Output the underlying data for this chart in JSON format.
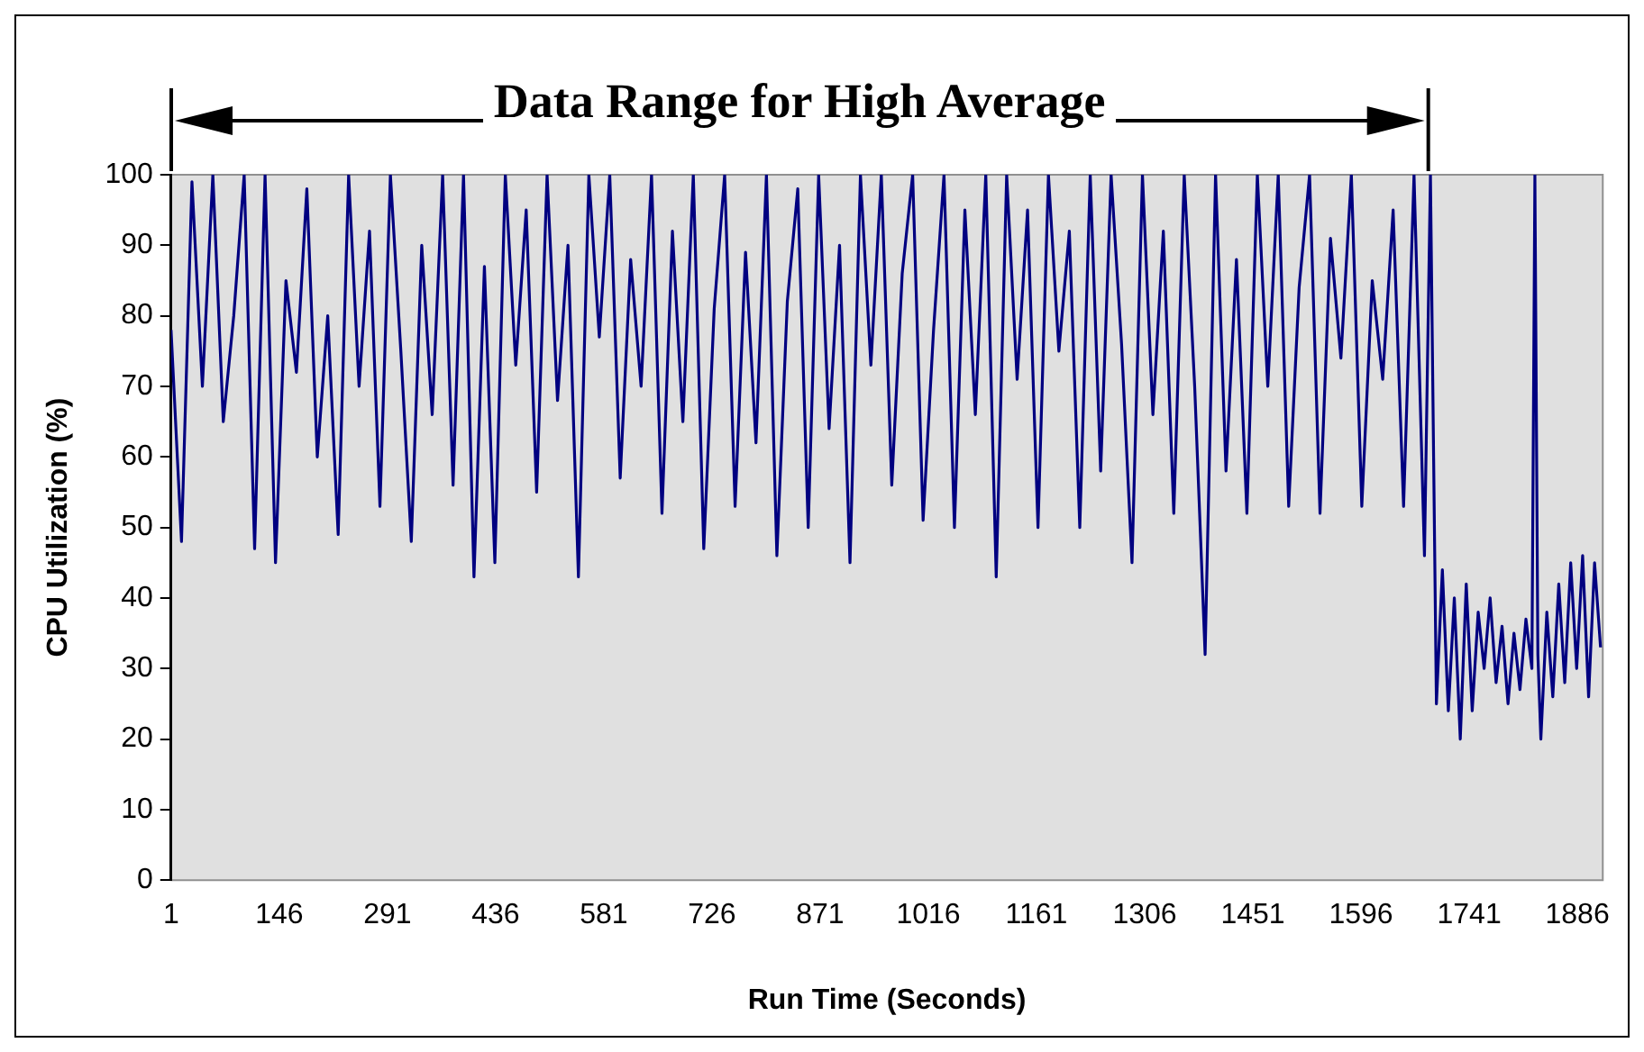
{
  "chart_data": {
    "type": "line",
    "xlabel": "Run Time (Seconds)",
    "ylabel": "CPU Utilization (%)",
    "xlim": [
      1,
      1920
    ],
    "xticks": [
      1,
      146,
      291,
      436,
      581,
      726,
      871,
      1016,
      1161,
      1306,
      1451,
      1596,
      1741,
      1886
    ],
    "ylim": [
      0,
      100
    ],
    "yticks": [
      0,
      10,
      20,
      30,
      40,
      50,
      60,
      70,
      80,
      90,
      100
    ],
    "grid": false,
    "legend": false,
    "marker": "none",
    "line_style": "solid",
    "annotations": [
      "Data Range for High Average"
    ],
    "series": [
      {
        "color": "#000080",
        "x": [
          1,
          15,
          29,
          43,
          57,
          71,
          85,
          99,
          113,
          127,
          141,
          155,
          169,
          183,
          197,
          211,
          225,
          239,
          253,
          267,
          281,
          295,
          309,
          323,
          337,
          351,
          365,
          379,
          393,
          407,
          421,
          435,
          449,
          463,
          477,
          491,
          505,
          519,
          533,
          547,
          561,
          575,
          589,
          603,
          617,
          631,
          645,
          659,
          673,
          687,
          701,
          715,
          729,
          743,
          757,
          771,
          785,
          799,
          813,
          827,
          841,
          855,
          869,
          883,
          897,
          911,
          925,
          939,
          953,
          967,
          981,
          995,
          1009,
          1023,
          1037,
          1051,
          1065,
          1079,
          1093,
          1107,
          1121,
          1135,
          1149,
          1163,
          1177,
          1191,
          1205,
          1219,
          1233,
          1247,
          1261,
          1275,
          1289,
          1303,
          1317,
          1331,
          1345,
          1359,
          1373,
          1387,
          1401,
          1415,
          1429,
          1443,
          1457,
          1471,
          1485,
          1499,
          1513,
          1527,
          1541,
          1555,
          1569,
          1583,
          1597,
          1611,
          1625,
          1639,
          1653,
          1667,
          1681,
          1689,
          1697,
          1705,
          1713,
          1721,
          1729,
          1737,
          1745,
          1753,
          1761,
          1769,
          1777,
          1785,
          1793,
          1801,
          1809,
          1817,
          1825,
          1829,
          1833,
          1837,
          1845,
          1853,
          1861,
          1869,
          1877,
          1885,
          1893,
          1901,
          1909,
          1917
        ],
        "values": [
          78,
          48,
          99,
          70,
          100,
          65,
          80,
          100,
          47,
          100,
          45,
          85,
          72,
          98,
          60,
          80,
          49,
          100,
          70,
          92,
          53,
          100,
          75,
          48,
          90,
          66,
          100,
          56,
          100,
          43,
          87,
          45,
          100,
          73,
          95,
          55,
          100,
          68,
          90,
          43,
          100,
          77,
          100,
          57,
          88,
          70,
          100,
          52,
          92,
          65,
          100,
          47,
          81,
          100,
          53,
          89,
          62,
          100,
          46,
          82,
          98,
          50,
          100,
          64,
          90,
          45,
          100,
          73,
          100,
          56,
          86,
          100,
          51,
          78,
          100,
          50,
          95,
          66,
          100,
          43,
          100,
          71,
          95,
          50,
          100,
          75,
          92,
          50,
          100,
          58,
          100,
          76,
          45,
          100,
          66,
          92,
          52,
          100,
          70,
          32,
          100,
          58,
          88,
          52,
          100,
          70,
          100,
          53,
          84,
          100,
          52,
          91,
          74,
          100,
          53,
          85,
          71,
          95,
          53,
          100,
          46,
          100,
          25,
          44,
          24,
          40,
          20,
          42,
          24,
          38,
          30,
          40,
          28,
          36,
          25,
          35,
          27,
          37,
          30,
          100,
          32,
          20,
          38,
          26,
          42,
          28,
          45,
          30,
          46,
          26,
          45,
          33
        ]
      }
    ]
  }
}
